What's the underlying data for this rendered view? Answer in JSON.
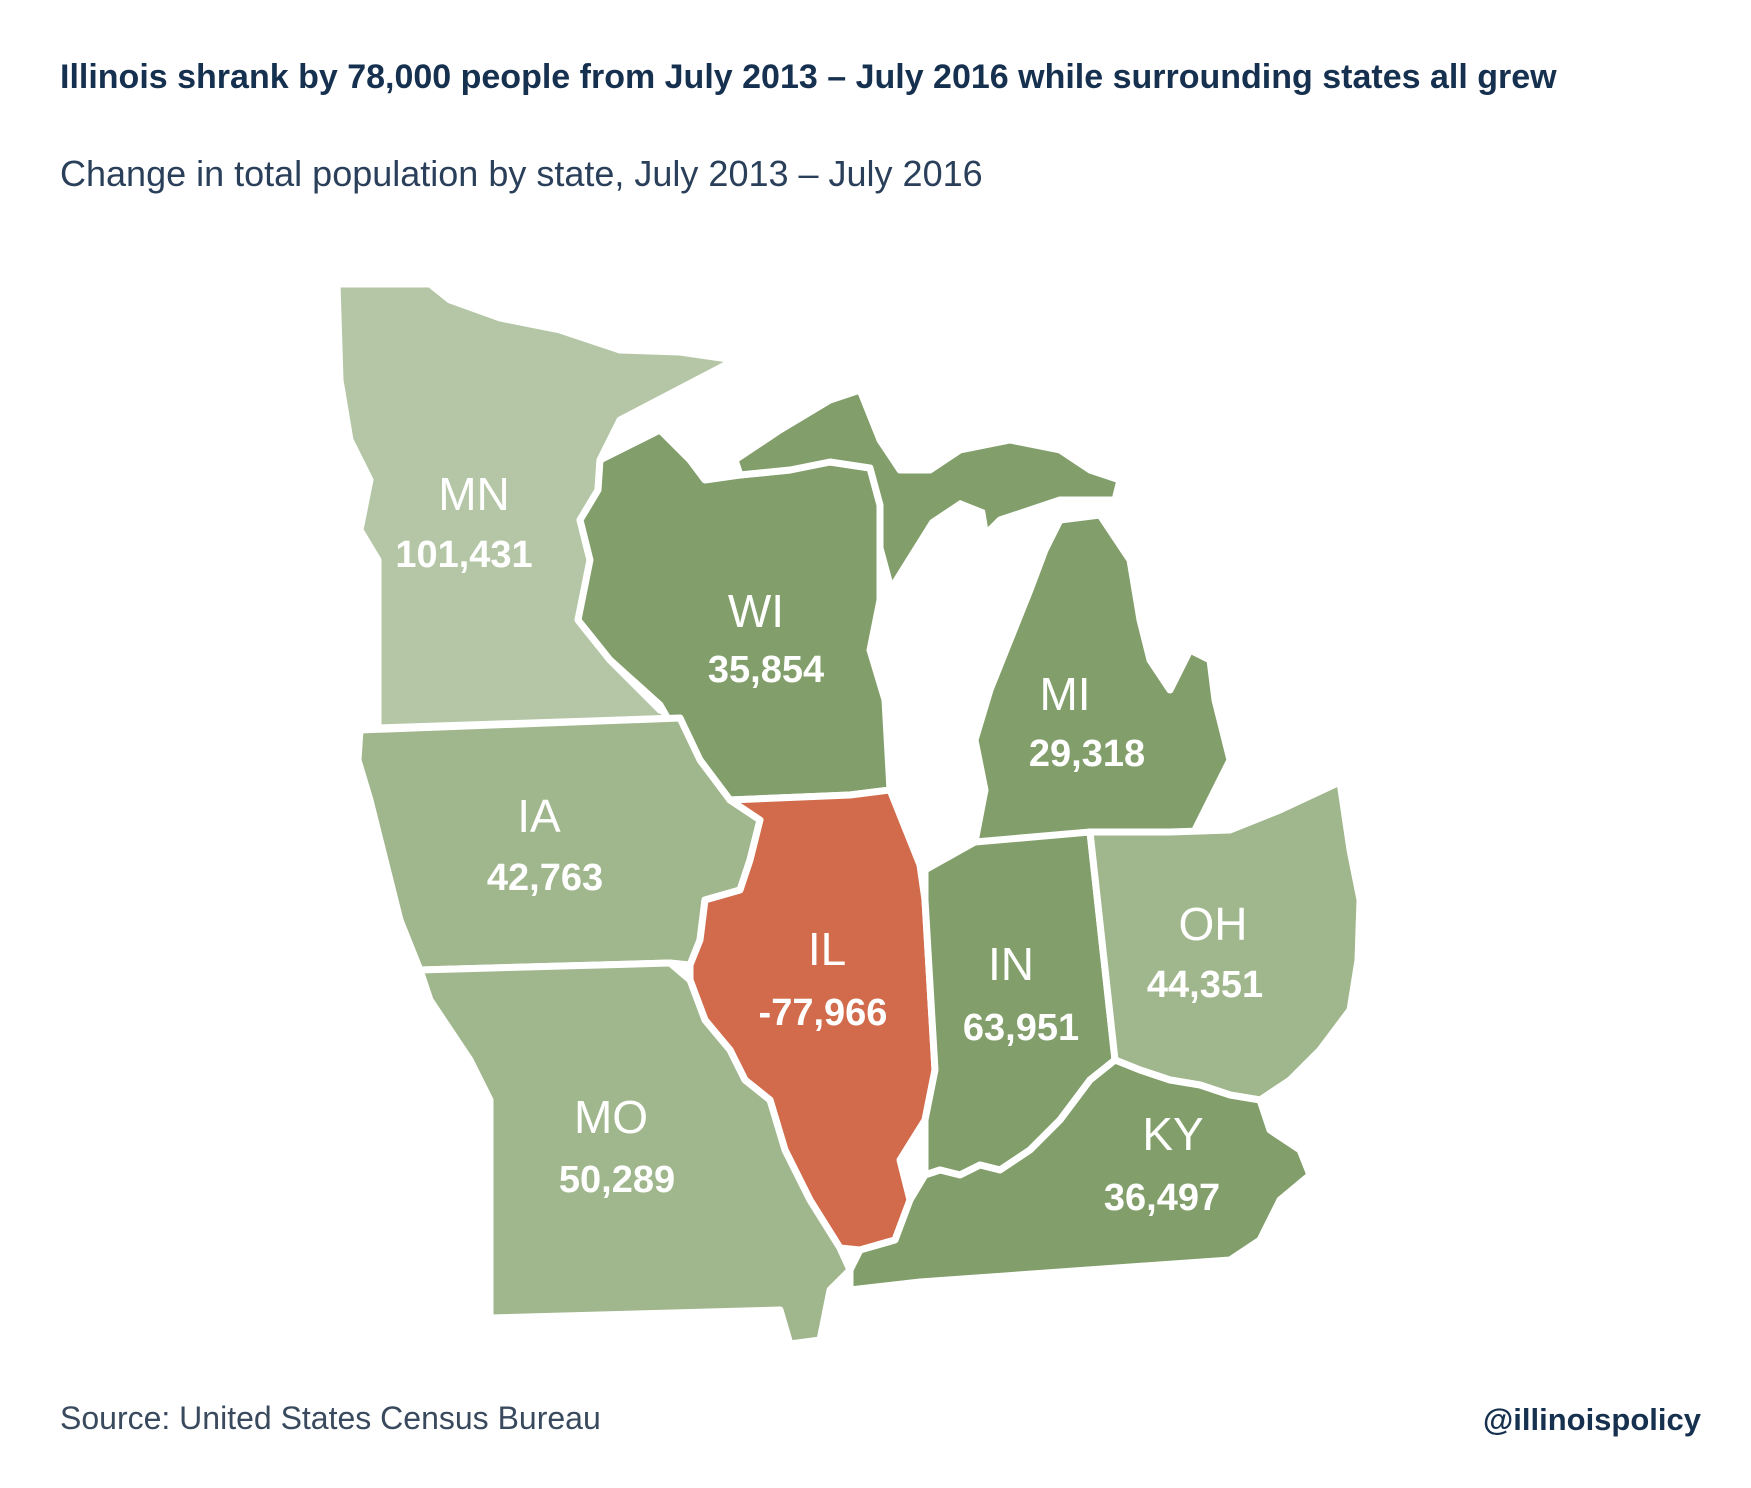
{
  "header": {
    "title": "Illinois shrank by 78,000 people from July 2013 – July 2016 while surrounding states all grew",
    "subtitle": "Change in total population by state, July 2013 – July 2016"
  },
  "footer": {
    "source": "Source: United States Census Bureau",
    "handle": "@illinoispolicy"
  },
  "colors": {
    "light_green": "#b4c6a6",
    "mid_green": "#a0b68c",
    "dark_green": "#829e6a",
    "orange": "#d16b4b",
    "text_dark": "#16304f"
  },
  "states": {
    "MN": {
      "abbr": "MN",
      "value": "101,431",
      "color": "#b4c6a6"
    },
    "WI": {
      "abbr": "WI",
      "value": "35,854",
      "color": "#829e6a"
    },
    "MI": {
      "abbr": "MI",
      "value": "29,318",
      "color": "#829e6a"
    },
    "IA": {
      "abbr": "IA",
      "value": "42,763",
      "color": "#a0b68c"
    },
    "IL": {
      "abbr": "IL",
      "value": "-77,966",
      "color": "#d16b4b"
    },
    "IN": {
      "abbr": "IN",
      "value": "63,951",
      "color": "#829e6a"
    },
    "OH": {
      "abbr": "OH",
      "value": "44,351",
      "color": "#a0b68c"
    },
    "MO": {
      "abbr": "MO",
      "value": "50,289",
      "color": "#a0b68c"
    },
    "KY": {
      "abbr": "KY",
      "value": "36,497",
      "color": "#829e6a"
    }
  }
}
